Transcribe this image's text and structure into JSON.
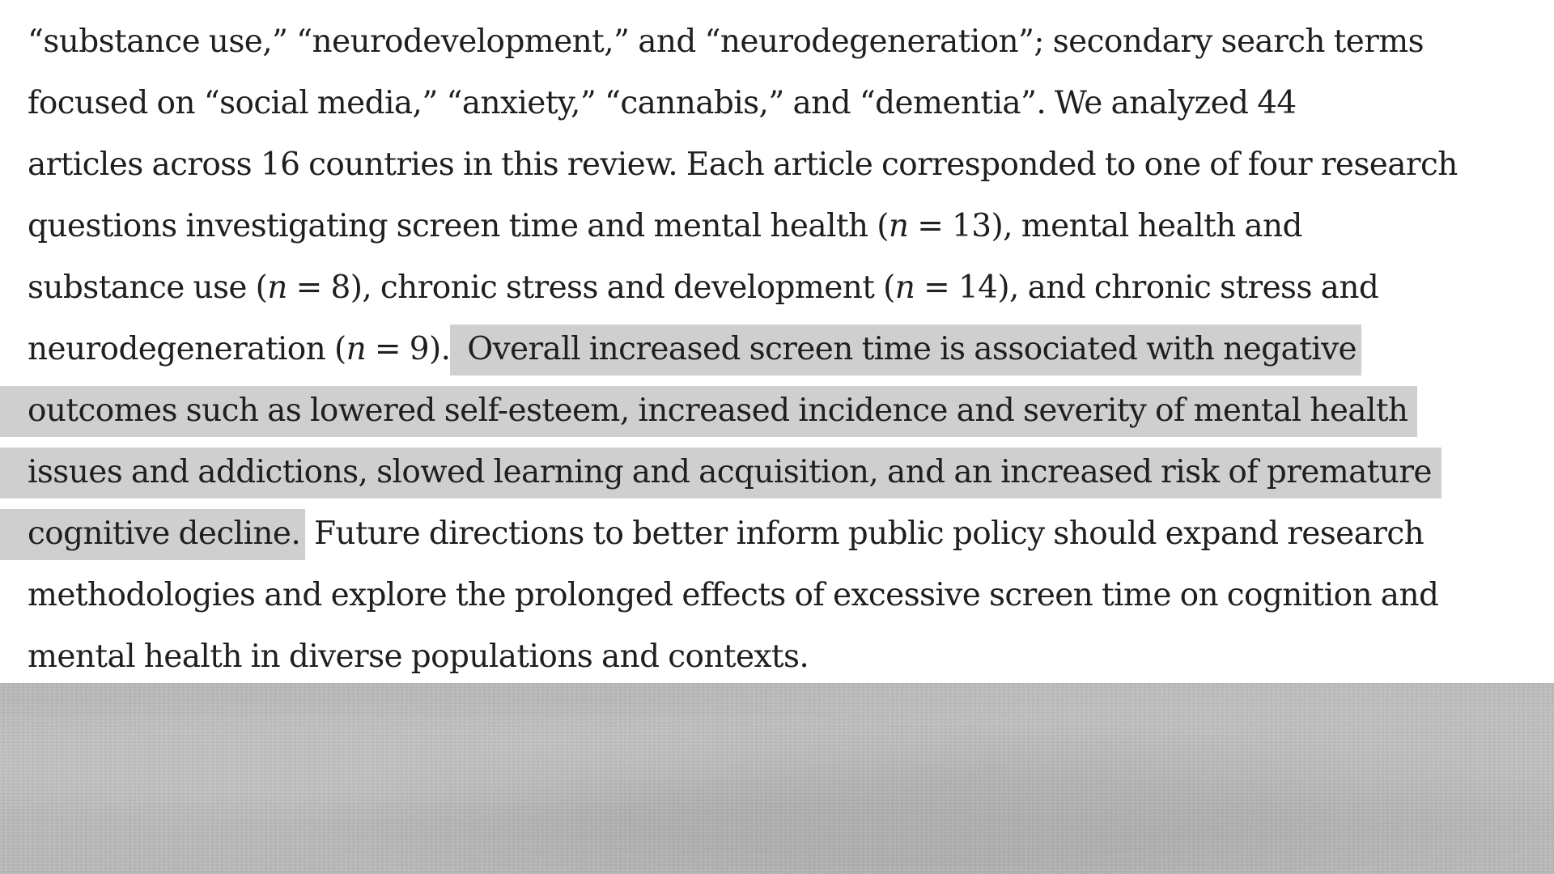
{
  "document": {
    "lines": [
      {
        "parts": [
          {
            "text": "“substance use,” “neurodevelopment,” and “neurodegeneration”; secondary search terms"
          }
        ]
      },
      {
        "parts": [
          {
            "text": "focused on “social media,” “anxiety,” “cannabis,” and “dementia”. We analyzed 44"
          }
        ]
      },
      {
        "parts": [
          {
            "text": "articles across 16 countries in this review. Each article corresponded to one of four research"
          }
        ]
      },
      {
        "parts": [
          {
            "text": "questions investigating screen time and mental health ("
          },
          {
            "text": "n",
            "italic": true
          },
          {
            "text": " = 13), mental health and"
          }
        ]
      },
      {
        "parts": [
          {
            "text": "substance use ("
          },
          {
            "text": "n",
            "italic": true
          },
          {
            "text": " = 8), chronic stress and development ("
          },
          {
            "text": "n",
            "italic": true
          },
          {
            "text": " = 14), and chronic stress and"
          }
        ]
      },
      {
        "parts": [
          {
            "text": "neurodegeneration ("
          },
          {
            "text": "n",
            "italic": true
          },
          {
            "text": " = 9)."
          },
          {
            "text": " Overall increased screen time is associated with negative",
            "highlight": true
          }
        ]
      },
      {
        "parts": [
          {
            "text": "outcomes such as lowered self-esteem, increased incidence and severity of mental health",
            "highlight": true
          }
        ]
      },
      {
        "parts": [
          {
            "text": "issues and addictions, slowed learning and acquisition, and an increased risk of premature",
            "highlight": true
          }
        ]
      },
      {
        "parts": [
          {
            "text": "cognitive decline.",
            "highlight": true
          },
          {
            "text": " Future directions to better inform public policy should expand research"
          }
        ]
      },
      {
        "parts": [
          {
            "text": "methodologies and explore the prolonged effects of excessive screen time on cognition and"
          }
        ]
      },
      {
        "parts": [
          {
            "text": "mental health in diverse populations and contexts."
          }
        ]
      }
    ],
    "highlight_color": "#cfcfcf",
    "text_color": "#1f1f1f",
    "background_color": "#ffffff",
    "lower_area_color": "#b9b9b9"
  }
}
